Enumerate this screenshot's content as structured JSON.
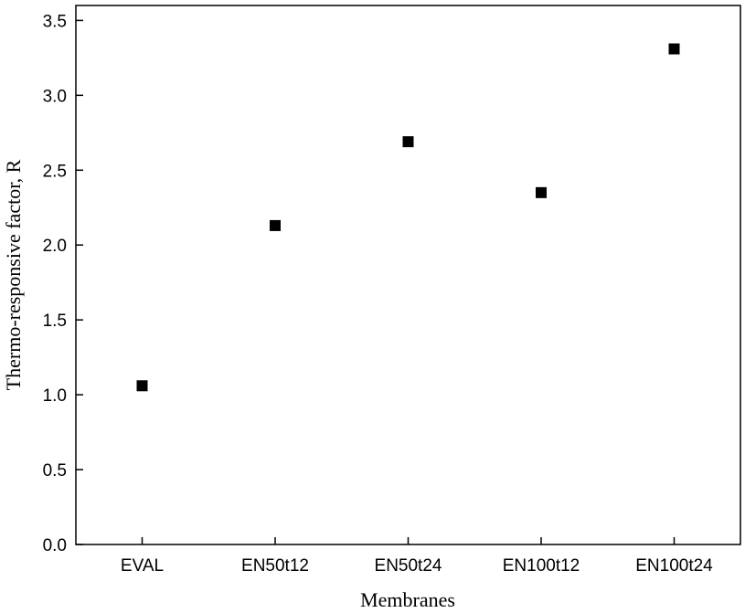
{
  "chart_data": {
    "type": "scatter",
    "title": "",
    "xlabel": "Membranes",
    "ylabel": "Thermo-responsive factor, R",
    "categories": [
      "EVAL",
      "EN50t12",
      "EN50t24",
      "EN100t12",
      "EN100t24"
    ],
    "values": [
      1.06,
      2.13,
      2.69,
      2.35,
      3.31
    ],
    "ylim": [
      0,
      3.6
    ],
    "yticks": [
      "0.0",
      "0.5",
      "1.0",
      "1.5",
      "2.0",
      "2.5",
      "3.0",
      "3.5"
    ],
    "grid": false,
    "legend": "none",
    "marker": "square",
    "marker_color": "#000000"
  }
}
